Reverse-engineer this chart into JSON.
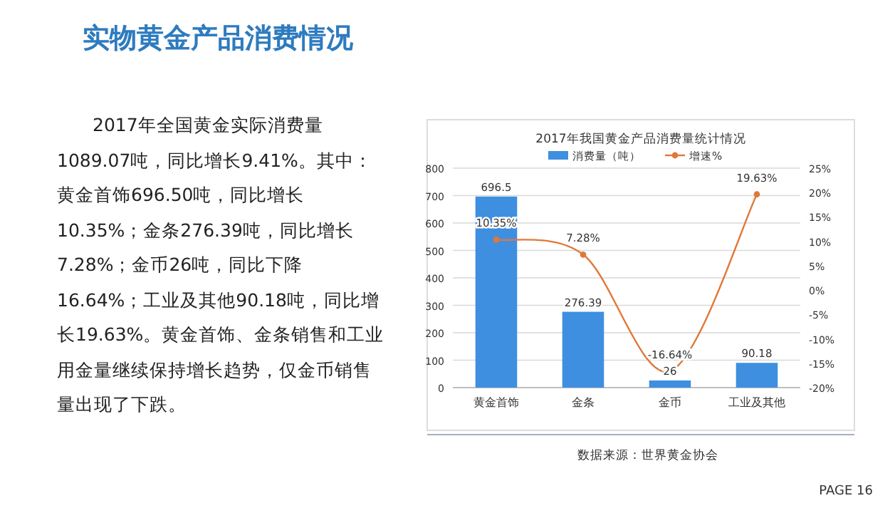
{
  "chart_data": {
    "type": "bar",
    "title": "2017年我国黄金产品消费量统计情况",
    "categories": [
      "黄金首饰",
      "金条",
      "金币",
      "工业及其他"
    ],
    "series": [
      {
        "name": "消费量（吨）",
        "color": "#3e8fe0",
        "values": [
          696.5,
          276.39,
          26,
          90.18
        ]
      },
      {
        "name": "增速%",
        "type": "line",
        "axis": "y2",
        "color": "#e0783a",
        "values": [
          10.35,
          7.28,
          -16.64,
          19.63
        ],
        "value_labels": [
          "10.35%",
          "7.28%",
          "-16.64%",
          "19.63%"
        ]
      }
    ],
    "data_labels": true,
    "ylim": [
      0,
      800
    ],
    "yticks": [
      0,
      100,
      200,
      300,
      400,
      500,
      600,
      700,
      800
    ],
    "y2lim": [
      -20,
      25
    ],
    "y2ticks": [
      {
        "value": -20,
        "label": "-20%"
      },
      {
        "value": -15,
        "label": "-15%"
      },
      {
        "value": -10,
        "label": "-10%"
      },
      {
        "value": -5,
        "label": "-5%"
      },
      {
        "value": 0,
        "label": "0%"
      },
      {
        "value": 5,
        "label": "5%"
      },
      {
        "value": 10,
        "label": "10%"
      },
      {
        "value": 15,
        "label": "15%"
      },
      {
        "value": 20,
        "label": "20%"
      },
      {
        "value": 25,
        "label": "25%"
      }
    ],
    "grid": "y",
    "legend": "top",
    "marker": "circle",
    "annotations": [
      "实物黄金产品消费情况",
      "2017年全国黄金实际消费量1089.07吨，同比增长9.41%。其中：黄金首饰696.50吨，同比增长10.35%；金条276.39吨，同比增长7.28%；金币26吨，同比下降16.64%；工业及其他90.18吨，同比增长19.63%。黄金首饰、金条销售和工业用金量继续保持增长趋势，仅金币销售量出现了下跌。",
      "数据来源：世界黄金协会",
      "PAGE 16"
    ]
  }
}
